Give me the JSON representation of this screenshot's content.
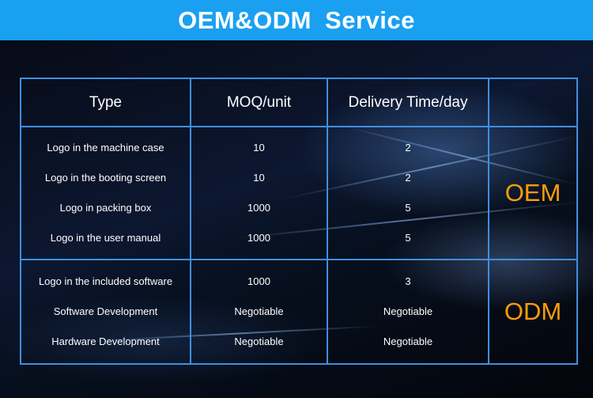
{
  "header": {
    "title": "OEM&ODM  Service"
  },
  "table": {
    "columns": [
      "Type",
      "MOQ/unit",
      "Delivery Time/day",
      ""
    ],
    "groups": [
      {
        "label": "OEM",
        "rows": [
          {
            "type": "Logo in the machine case",
            "moq": "10",
            "delivery": "2"
          },
          {
            "type": "Logo in the booting screen",
            "moq": "10",
            "delivery": "2"
          },
          {
            "type": "Logo in packing box",
            "moq": "1000",
            "delivery": "5"
          },
          {
            "type": "Logo in the user manual",
            "moq": "1000",
            "delivery": "5"
          }
        ]
      },
      {
        "label": "ODM",
        "rows": [
          {
            "type": "Logo in the included software",
            "moq": "1000",
            "delivery": "3"
          },
          {
            "type": "Software Development",
            "moq": "Negotiable",
            "delivery": "Negotiable"
          },
          {
            "type": "Hardware Development",
            "moq": "Negotiable",
            "delivery": "Negotiable"
          }
        ]
      }
    ]
  },
  "colors": {
    "header_bg": "#1aa0f1",
    "grid_line": "#3f8fe0",
    "column_header_text": "#35b4ff",
    "group_label_text": "#ff9c0a",
    "cell_text": "#ffffff"
  }
}
